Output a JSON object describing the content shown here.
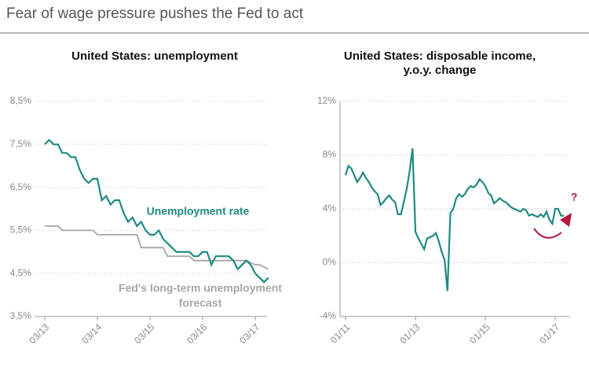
{
  "title": "Fear of wage pressure pushes the Fed to act",
  "chart_data": [
    {
      "type": "line",
      "title": [
        "United States: unemployment"
      ],
      "x": [
        "2013-03",
        "2013-04",
        "2013-05",
        "2013-06",
        "2013-07",
        "2013-08",
        "2013-09",
        "2013-10",
        "2013-11",
        "2013-12",
        "2014-01",
        "2014-02",
        "2014-03",
        "2014-04",
        "2014-05",
        "2014-06",
        "2014-07",
        "2014-08",
        "2014-09",
        "2014-10",
        "2014-11",
        "2014-12",
        "2015-01",
        "2015-02",
        "2015-03",
        "2015-04",
        "2015-05",
        "2015-06",
        "2015-07",
        "2015-08",
        "2015-09",
        "2015-10",
        "2015-11",
        "2015-12",
        "2016-01",
        "2016-02",
        "2016-03",
        "2016-04",
        "2016-05",
        "2016-06",
        "2016-07",
        "2016-08",
        "2016-09",
        "2016-10",
        "2016-11",
        "2016-12",
        "2017-01",
        "2017-02",
        "2017-03",
        "2017-04",
        "2017-05",
        "2017-06"
      ],
      "series": [
        {
          "name": "Unemployment rate",
          "color": "#1f8a80",
          "values": [
            7.5,
            7.6,
            7.5,
            7.5,
            7.3,
            7.3,
            7.2,
            7.2,
            6.9,
            6.7,
            6.6,
            6.7,
            6.7,
            6.2,
            6.3,
            6.1,
            6.2,
            6.2,
            5.9,
            5.7,
            5.8,
            5.6,
            5.7,
            5.5,
            5.4,
            5.4,
            5.5,
            5.3,
            5.2,
            5.1,
            5.0,
            5.0,
            5.0,
            5.0,
            4.9,
            4.9,
            5.0,
            5.0,
            4.7,
            4.9,
            4.9,
            4.9,
            4.9,
            4.8,
            4.6,
            4.7,
            4.8,
            4.7,
            4.5,
            4.4,
            4.3,
            4.4
          ]
        },
        {
          "name": "Fed's long-term unemployment forecast",
          "color": "#a6a6a6",
          "values": [
            5.6,
            5.6,
            5.6,
            5.6,
            5.5,
            5.5,
            5.5,
            5.5,
            5.5,
            5.5,
            5.5,
            5.5,
            5.4,
            5.4,
            5.4,
            5.4,
            5.4,
            5.4,
            5.4,
            5.4,
            5.4,
            5.4,
            5.1,
            5.1,
            5.1,
            5.1,
            5.1,
            5.1,
            4.9,
            4.9,
            4.9,
            4.9,
            4.9,
            4.9,
            4.8,
            4.8,
            4.8,
            4.8,
            4.8,
            4.8,
            4.8,
            4.8,
            4.8,
            4.8,
            4.8,
            4.8,
            4.8,
            4.75,
            4.7,
            4.7,
            4.65,
            4.6
          ]
        }
      ],
      "annotations": [
        {
          "text": [
            "Unemployment rate"
          ],
          "color": "#1f8a80"
        },
        {
          "text": [
            "Fed's long-term unemployment",
            "forecast"
          ],
          "color": "#a6a6a6"
        }
      ],
      "xticks": [
        {
          "value": "2013-03",
          "label": "03/13"
        },
        {
          "value": "2014-03",
          "label": "03/14"
        },
        {
          "value": "2015-03",
          "label": "03/15"
        },
        {
          "value": "2016-03",
          "label": "03/16"
        },
        {
          "value": "2017-03",
          "label": "03/17"
        }
      ],
      "ylim": [
        3.5,
        8.5
      ],
      "yticks": [
        {
          "value": 3.5,
          "label": "3,5%"
        },
        {
          "value": 4.5,
          "label": "4,5%"
        },
        {
          "value": 5.5,
          "label": "5,5%"
        },
        {
          "value": 6.5,
          "label": "6,5%"
        },
        {
          "value": 7.5,
          "label": "7,5%"
        },
        {
          "value": 8.5,
          "label": "8,5%"
        }
      ],
      "grid": true
    },
    {
      "type": "line",
      "title": [
        "United States: disposable income,",
        "y.o.y. change"
      ],
      "x": [
        "2011-01",
        "2011-02",
        "2011-03",
        "2011-04",
        "2011-05",
        "2011-06",
        "2011-07",
        "2011-08",
        "2011-09",
        "2011-10",
        "2011-11",
        "2011-12",
        "2012-01",
        "2012-02",
        "2012-03",
        "2012-04",
        "2012-05",
        "2012-06",
        "2012-07",
        "2012-08",
        "2012-09",
        "2012-10",
        "2012-11",
        "2012-12",
        "2013-01",
        "2013-02",
        "2013-03",
        "2013-04",
        "2013-05",
        "2013-06",
        "2013-07",
        "2013-08",
        "2013-09",
        "2013-10",
        "2013-11",
        "2013-12",
        "2014-01",
        "2014-02",
        "2014-03",
        "2014-04",
        "2014-05",
        "2014-06",
        "2014-07",
        "2014-08",
        "2014-09",
        "2014-10",
        "2014-11",
        "2014-12",
        "2015-01",
        "2015-02",
        "2015-03",
        "2015-04",
        "2015-05",
        "2015-06",
        "2015-07",
        "2015-08",
        "2015-09",
        "2015-10",
        "2015-11",
        "2015-12",
        "2016-01",
        "2016-02",
        "2016-03",
        "2016-04",
        "2016-05",
        "2016-06",
        "2016-07",
        "2016-08",
        "2016-09",
        "2016-10",
        "2016-11",
        "2016-12",
        "2017-01",
        "2017-02",
        "2017-03",
        "2017-04"
      ],
      "series": [
        {
          "name": "Disposable income, y.o.y. change",
          "color": "#1f8a80",
          "values": [
            6.5,
            7.2,
            7.0,
            6.5,
            6.0,
            6.3,
            6.7,
            6.3,
            6.0,
            5.6,
            5.3,
            5.1,
            4.3,
            4.5,
            4.8,
            5.0,
            4.7,
            4.5,
            3.6,
            3.6,
            4.5,
            5.5,
            6.8,
            8.5,
            2.3,
            1.8,
            1.4,
            1.0,
            1.8,
            1.9,
            2.0,
            2.2,
            1.6,
            0.8,
            0.2,
            -2.1,
            3.7,
            4.0,
            4.8,
            5.1,
            4.9,
            5.1,
            5.5,
            5.7,
            5.6,
            5.8,
            6.2,
            6.0,
            5.7,
            5.2,
            5.0,
            4.4,
            4.6,
            4.8,
            4.6,
            4.5,
            4.3,
            4.1,
            4.0,
            3.9,
            3.8,
            4.0,
            3.9,
            3.5,
            3.6,
            3.5,
            3.4,
            3.6,
            3.4,
            3.8,
            3.2,
            2.9,
            4.0,
            4.0,
            3.5,
            3.5
          ]
        }
      ],
      "annotations": [
        {
          "text": [
            "?"
          ],
          "color": "#b5163e"
        }
      ],
      "xticks": [
        {
          "value": "2011-01",
          "label": "01/11"
        },
        {
          "value": "2013-01",
          "label": "01/13"
        },
        {
          "value": "2015-01",
          "label": "01/15"
        },
        {
          "value": "2017-01",
          "label": "01/17"
        }
      ],
      "ylim": [
        -4,
        12
      ],
      "yticks": [
        {
          "value": -4,
          "label": "-4%"
        },
        {
          "value": 0,
          "label": "0%"
        },
        {
          "value": 4,
          "label": "4%"
        },
        {
          "value": 8,
          "label": "8%"
        },
        {
          "value": 12,
          "label": "12%"
        }
      ],
      "grid": true
    }
  ]
}
